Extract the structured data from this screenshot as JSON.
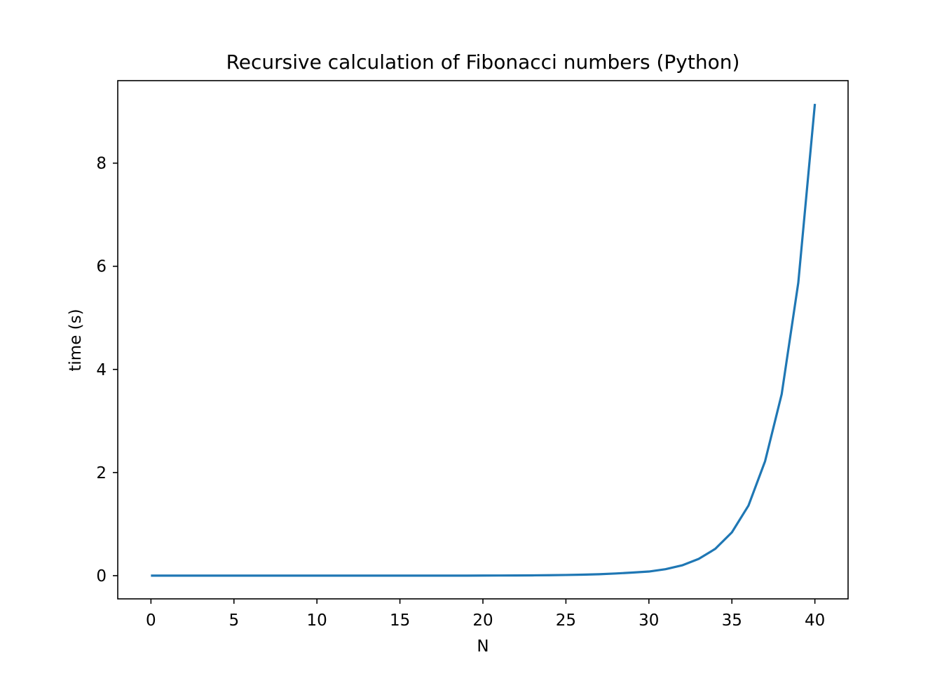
{
  "chart_data": {
    "type": "line",
    "title": "Recursive calculation of Fibonacci numbers (Python)",
    "xlabel": "N",
    "ylabel": "time (s)",
    "xlim": [
      -2,
      42
    ],
    "ylim": [
      -0.45,
      9.6
    ],
    "xticks": [
      0,
      5,
      10,
      15,
      20,
      25,
      30,
      35,
      40
    ],
    "yticks": [
      0,
      2,
      4,
      6,
      8
    ],
    "grid": false,
    "legend": "none",
    "series": [
      {
        "color": "#1f77b4",
        "x": [
          0,
          1,
          2,
          3,
          4,
          5,
          6,
          7,
          8,
          9,
          10,
          11,
          12,
          13,
          14,
          15,
          16,
          17,
          18,
          19,
          20,
          21,
          22,
          23,
          24,
          25,
          26,
          27,
          28,
          29,
          30,
          31,
          32,
          33,
          34,
          35,
          36,
          37,
          38,
          39,
          40
        ],
        "y": [
          0,
          0,
          0,
          0,
          0,
          0,
          0,
          0,
          0,
          0,
          0,
          0,
          0,
          0,
          0,
          0,
          0,
          0,
          0,
          0.001,
          0.002,
          0.003,
          0.004,
          0.006,
          0.009,
          0.013,
          0.019,
          0.028,
          0.042,
          0.06,
          0.08,
          0.125,
          0.2,
          0.325,
          0.52,
          0.84,
          1.36,
          2.22,
          3.52,
          5.68,
          9.15
        ]
      }
    ]
  }
}
